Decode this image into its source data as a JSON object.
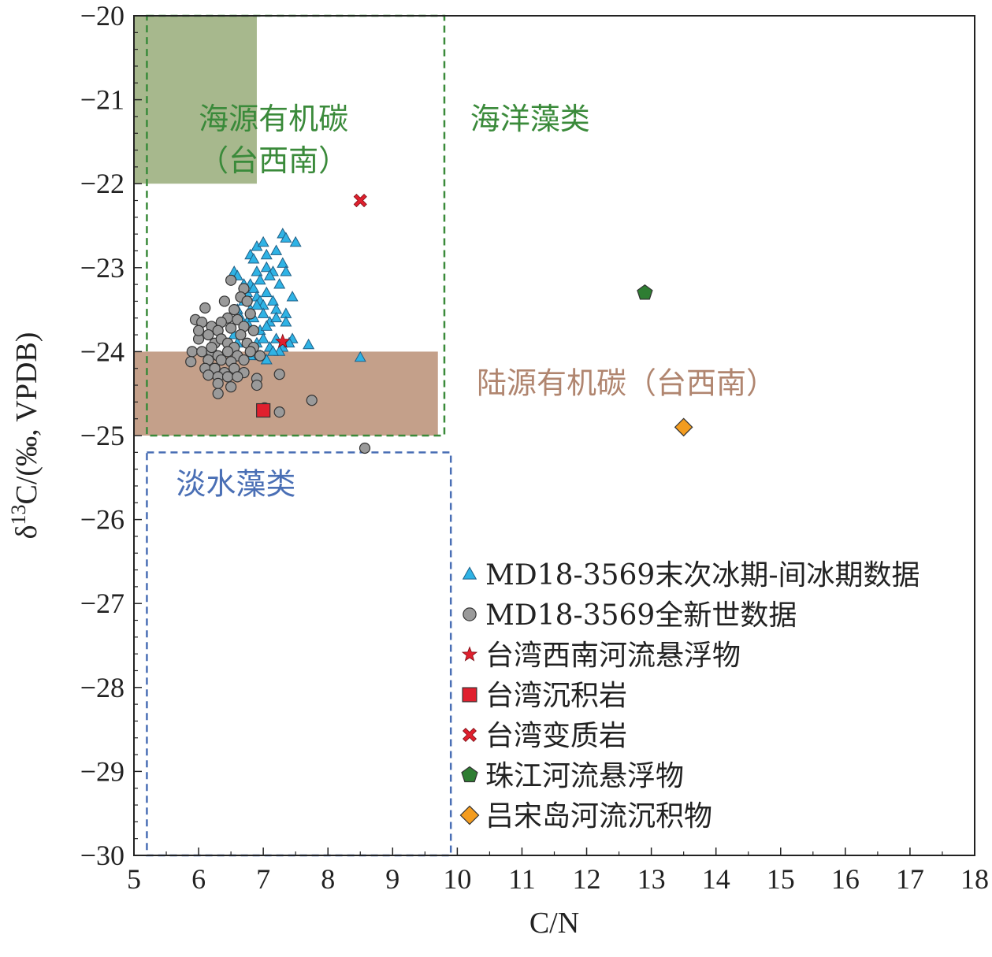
{
  "chart_data": {
    "type": "scatter",
    "xlabel": "C/N",
    "ylabel_parts": [
      "δ",
      "13",
      "C/(‰, VPDB)"
    ],
    "xlim": [
      5,
      18
    ],
    "ylim": [
      -30,
      -20
    ],
    "x_ticks": [
      "5",
      "6",
      "7",
      "8",
      "9",
      "10",
      "11",
      "12",
      "13",
      "14",
      "15",
      "16",
      "17",
      "18"
    ],
    "y_ticks": [
      "−20",
      "−21",
      "−22",
      "−23",
      "−24",
      "−25",
      "−26",
      "−27",
      "−28",
      "−29",
      "−30"
    ],
    "regions": [
      {
        "id": "marine-oc-shade",
        "kind": "fill",
        "x0": 5.0,
        "x1": 6.9,
        "y0": -22.0,
        "y1": -20.0,
        "color": "#a7b88d"
      },
      {
        "id": "terrestrial-oc-shade",
        "kind": "fill",
        "x0": 5.0,
        "x1": 9.7,
        "y0": -25.0,
        "y1": -24.0,
        "color": "#c4a08a"
      },
      {
        "id": "marine-algae-box",
        "kind": "dashed",
        "x0": 5.2,
        "x1": 9.8,
        "y0": -25.0,
        "y1": -20.0,
        "color": "#3a8a3a"
      },
      {
        "id": "freshwater-algae-box",
        "kind": "dashed",
        "x0": 5.2,
        "x1": 9.9,
        "y0": -30.0,
        "y1": -25.2,
        "color": "#4a6fb5"
      }
    ],
    "region_labels": [
      {
        "text": "海源有机碳",
        "x": 6.0,
        "y": -21.35,
        "color": "#3a8a3a"
      },
      {
        "text": "（台西南）",
        "x": 6.0,
        "y": -21.85,
        "color": "#3a8a3a"
      },
      {
        "text": "海洋藻类",
        "x": 10.2,
        "y": -21.35,
        "color": "#3a8a3a"
      },
      {
        "text": "陆源有机碳（台西南）",
        "x": 10.3,
        "y": -24.5,
        "color": "#b0856f"
      },
      {
        "text": "淡水藻类",
        "x": 5.65,
        "y": -25.7,
        "color": "#4a6fb5"
      }
    ],
    "series": [
      {
        "name": "MD18-3569末次冰期-间冰期数据",
        "marker": "triangle",
        "color": "#2fb3e5",
        "points": [
          [
            6.8,
            -22.85
          ],
          [
            6.9,
            -22.75
          ],
          [
            7.0,
            -22.7
          ],
          [
            7.05,
            -22.85
          ],
          [
            7.2,
            -22.8
          ],
          [
            7.3,
            -22.6
          ],
          [
            7.35,
            -22.65
          ],
          [
            7.5,
            -22.7
          ],
          [
            6.85,
            -22.9
          ],
          [
            6.55,
            -23.05
          ],
          [
            6.6,
            -23.1
          ],
          [
            6.9,
            -23.05
          ],
          [
            7.05,
            -23.0
          ],
          [
            7.15,
            -23.05
          ],
          [
            7.3,
            -22.95
          ],
          [
            7.35,
            -23.05
          ],
          [
            7.1,
            -23.1
          ],
          [
            6.8,
            -23.2
          ],
          [
            6.7,
            -23.2
          ],
          [
            6.75,
            -23.3
          ],
          [
            6.85,
            -23.25
          ],
          [
            6.9,
            -23.35
          ],
          [
            6.95,
            -23.4
          ],
          [
            7.0,
            -23.45
          ],
          [
            7.05,
            -23.3
          ],
          [
            7.15,
            -23.4
          ],
          [
            7.2,
            -23.5
          ],
          [
            7.25,
            -23.2
          ],
          [
            6.95,
            -23.15
          ],
          [
            7.45,
            -23.35
          ],
          [
            6.6,
            -23.5
          ],
          [
            6.8,
            -23.5
          ],
          [
            6.9,
            -23.45
          ],
          [
            7.0,
            -23.55
          ],
          [
            7.1,
            -23.65
          ],
          [
            7.2,
            -23.6
          ],
          [
            7.35,
            -23.55
          ],
          [
            6.65,
            -23.6
          ],
          [
            6.75,
            -23.65
          ],
          [
            6.85,
            -23.6
          ],
          [
            6.95,
            -23.75
          ],
          [
            7.05,
            -23.7
          ],
          [
            6.6,
            -23.9
          ],
          [
            6.9,
            -23.9
          ],
          [
            7.0,
            -23.85
          ],
          [
            7.2,
            -23.85
          ],
          [
            7.3,
            -23.95
          ],
          [
            7.45,
            -23.85
          ],
          [
            7.4,
            -23.9
          ],
          [
            7.7,
            -23.92
          ],
          [
            7.1,
            -23.95
          ],
          [
            6.95,
            -24.05
          ],
          [
            6.8,
            -24.05
          ],
          [
            7.05,
            -24.1
          ],
          [
            7.25,
            -24.0
          ],
          [
            8.5,
            -24.07
          ],
          [
            6.55,
            -23.8
          ],
          [
            7.15,
            -24.0
          ],
          [
            7.35,
            -23.65
          ],
          [
            6.7,
            -23.4
          ]
        ]
      },
      {
        "name": "MD18-3569全新世数据",
        "marker": "circle",
        "color": "#9a9a9a",
        "points": [
          [
            6.5,
            -23.15
          ],
          [
            6.7,
            -23.25
          ],
          [
            6.65,
            -23.35
          ],
          [
            6.75,
            -23.4
          ],
          [
            6.4,
            -23.4
          ],
          [
            6.1,
            -23.48
          ],
          [
            6.55,
            -23.5
          ],
          [
            6.8,
            -23.55
          ],
          [
            6.45,
            -23.6
          ],
          [
            6.35,
            -23.65
          ],
          [
            6.6,
            -23.62
          ],
          [
            6.7,
            -23.7
          ],
          [
            6.85,
            -23.75
          ],
          [
            5.95,
            -23.62
          ],
          [
            6.05,
            -23.65
          ],
          [
            6.2,
            -23.7
          ],
          [
            6.3,
            -23.75
          ],
          [
            6.5,
            -23.72
          ],
          [
            6.65,
            -23.8
          ],
          [
            6.0,
            -23.85
          ],
          [
            6.15,
            -23.8
          ],
          [
            6.25,
            -23.9
          ],
          [
            6.35,
            -23.85
          ],
          [
            6.45,
            -23.9
          ],
          [
            6.55,
            -23.95
          ],
          [
            6.75,
            -23.9
          ],
          [
            6.85,
            -23.95
          ],
          [
            5.9,
            -24.0
          ],
          [
            6.05,
            -24.0
          ],
          [
            6.2,
            -24.0
          ],
          [
            6.3,
            -24.05
          ],
          [
            6.45,
            -24.0
          ],
          [
            6.6,
            -24.05
          ],
          [
            6.8,
            -24.0
          ],
          [
            6.15,
            -24.1
          ],
          [
            6.35,
            -24.1
          ],
          [
            6.5,
            -24.12
          ],
          [
            6.7,
            -24.1
          ],
          [
            5.88,
            -24.12
          ],
          [
            6.1,
            -24.2
          ],
          [
            6.25,
            -24.2
          ],
          [
            6.4,
            -24.25
          ],
          [
            6.55,
            -24.2
          ],
          [
            6.7,
            -24.25
          ],
          [
            6.15,
            -24.28
          ],
          [
            6.3,
            -24.3
          ],
          [
            6.45,
            -24.3
          ],
          [
            6.6,
            -24.3
          ],
          [
            6.9,
            -24.32
          ],
          [
            7.25,
            -24.27
          ],
          [
            6.3,
            -24.38
          ],
          [
            6.9,
            -24.4
          ],
          [
            6.5,
            -24.42
          ],
          [
            6.3,
            -24.5
          ],
          [
            7.75,
            -24.58
          ],
          [
            7.02,
            -24.67
          ],
          [
            7.25,
            -24.72
          ],
          [
            8.57,
            -25.15
          ],
          [
            6.95,
            -24.05
          ],
          [
            6.2,
            -23.95
          ],
          [
            6.0,
            -23.75
          ]
        ]
      },
      {
        "name": "台湾西南河流悬浮物",
        "marker": "star",
        "color": "#e0202e",
        "points": [
          [
            7.3,
            -23.88
          ]
        ]
      },
      {
        "name": "台湾沉积岩",
        "marker": "square",
        "color": "#e0202e",
        "points": [
          [
            7.0,
            -24.7
          ]
        ]
      },
      {
        "name": "台湾变质岩",
        "marker": "x",
        "color": "#e0202e",
        "points": [
          [
            8.5,
            -22.2
          ]
        ]
      },
      {
        "name": "珠江河流悬浮物",
        "marker": "pentagon",
        "color": "#2e7d32",
        "points": [
          [
            12.9,
            -23.3
          ]
        ]
      },
      {
        "name": "吕宋岛河流沉积物",
        "marker": "diamond",
        "color": "#f39c1f",
        "points": [
          [
            13.5,
            -24.9
          ]
        ]
      }
    ],
    "legend_position": "bottom-right"
  }
}
